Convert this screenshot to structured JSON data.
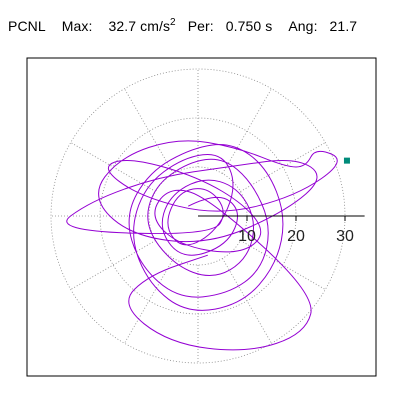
{
  "header": {
    "station": "PCNL",
    "max_label": "Max:",
    "max_value": "32.7",
    "max_unit": "cm/s",
    "max_unit_exp": "2",
    "per_label": "Per:",
    "per_value": "0.750 s",
    "ang_label": "Ang:",
    "ang_value": "21.7"
  },
  "chart_data": {
    "type": "scatter",
    "projection": "polar",
    "title": "",
    "radial_ticks": [
      "10",
      "20",
      "30"
    ],
    "radial_tick_values": [
      10,
      20,
      30
    ],
    "rmax": 34,
    "angular_grid_deg": [
      0,
      30,
      60,
      90,
      120,
      150,
      180,
      210,
      240,
      270,
      300,
      330
    ],
    "grid": true,
    "series": [
      {
        "color": "#9400D3",
        "x": [
          -2,
          4,
          9,
          6,
          -3,
          -8,
          -6,
          1,
          8,
          12,
          10,
          3,
          -5,
          -11,
          -9,
          -2,
          5,
          11,
          15,
          13,
          6,
          -4,
          -12,
          -15,
          -10,
          -1,
          7,
          14,
          18,
          16,
          9,
          -2,
          -10,
          -14,
          -11,
          -3,
          5,
          8,
          4,
          -3,
          -7,
          -4,
          2,
          6,
          3,
          -30,
          -22,
          -8,
          6,
          20,
          26,
          18,
          2,
          -14,
          -22,
          -16,
          -4,
          8,
          18,
          22,
          24,
          30.4,
          20,
          4,
          -12,
          -20,
          -14,
          0,
          10,
          14,
          8,
          -4,
          -10,
          -6,
          2,
          24,
          22,
          10,
          -6,
          -16,
          -10,
          2
        ],
        "y": [
          2,
          5,
          1,
          -6,
          -9,
          -3,
          4,
          8,
          6,
          -1,
          -9,
          -13,
          -10,
          -2,
          6,
          11,
          12,
          7,
          -2,
          -11,
          -16,
          -17,
          -10,
          0,
          9,
          14,
          15,
          10,
          0,
          -10,
          -18,
          -20,
          -14,
          -4,
          6,
          12,
          13,
          6,
          -3,
          -7,
          -2,
          5,
          6,
          1,
          -4,
          -3,
          3,
          8,
          10,
          12,
          8,
          1,
          -6,
          -4,
          4,
          12,
          16,
          14,
          10,
          10,
          14,
          11.3,
          4,
          0,
          4,
          10,
          12,
          8,
          2,
          -4,
          -8,
          -6,
          0,
          6,
          4,
          -16,
          -24,
          -28,
          -26,
          -18,
          -12,
          -8
        ]
      }
    ],
    "marker": {
      "x": 30.4,
      "y": 11.3,
      "color": "#008B7A"
    }
  }
}
